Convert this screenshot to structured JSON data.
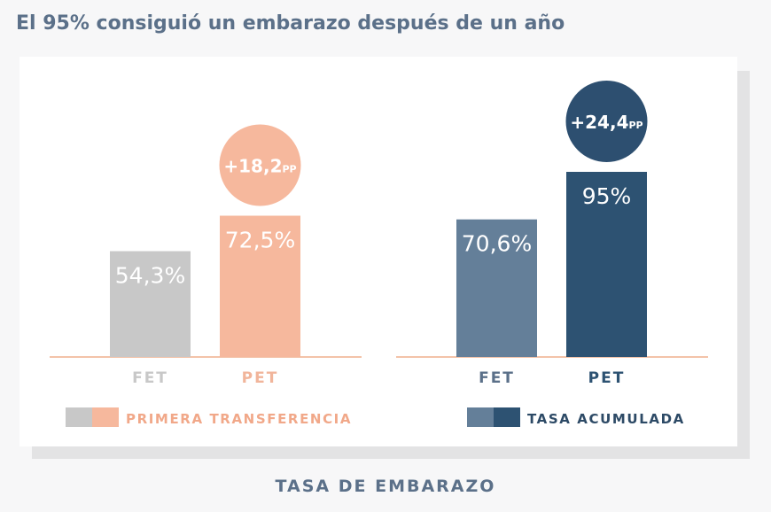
{
  "title": "El 95% consiguió un embarazo después de un año",
  "caption": "TASA DE EMBARAZO",
  "chart_data": [
    {
      "type": "bar",
      "categories": [
        "FET",
        "PET"
      ],
      "values": [
        54.3,
        72.5
      ],
      "value_labels": [
        "54,3%",
        "72,5%"
      ],
      "badge": {
        "main": "+18,2",
        "unit": "PP"
      },
      "legend": "PRIMERA TRANSFERENCIA",
      "colors": [
        "#c8c8c8",
        "#f6b89d"
      ],
      "label_colors": [
        "#c8c8c8",
        "#f1b59b"
      ],
      "legend_color": "#f1a889",
      "badge_color": "#f6b89d"
    },
    {
      "type": "bar",
      "categories": [
        "FET",
        "PET"
      ],
      "values": [
        70.6,
        95
      ],
      "value_labels": [
        "70,6%",
        "95%"
      ],
      "badge": {
        "main": "+24,4",
        "unit": "PP"
      },
      "legend": "TASA ACUMULADA",
      "colors": [
        "#647f99",
        "#2d5272"
      ],
      "label_colors": [
        "#5b7089",
        "#2d5272"
      ],
      "legend_color": "#2d4a66",
      "badge_color": "#2d4f70"
    }
  ],
  "axis_color": "#f3c3a9"
}
